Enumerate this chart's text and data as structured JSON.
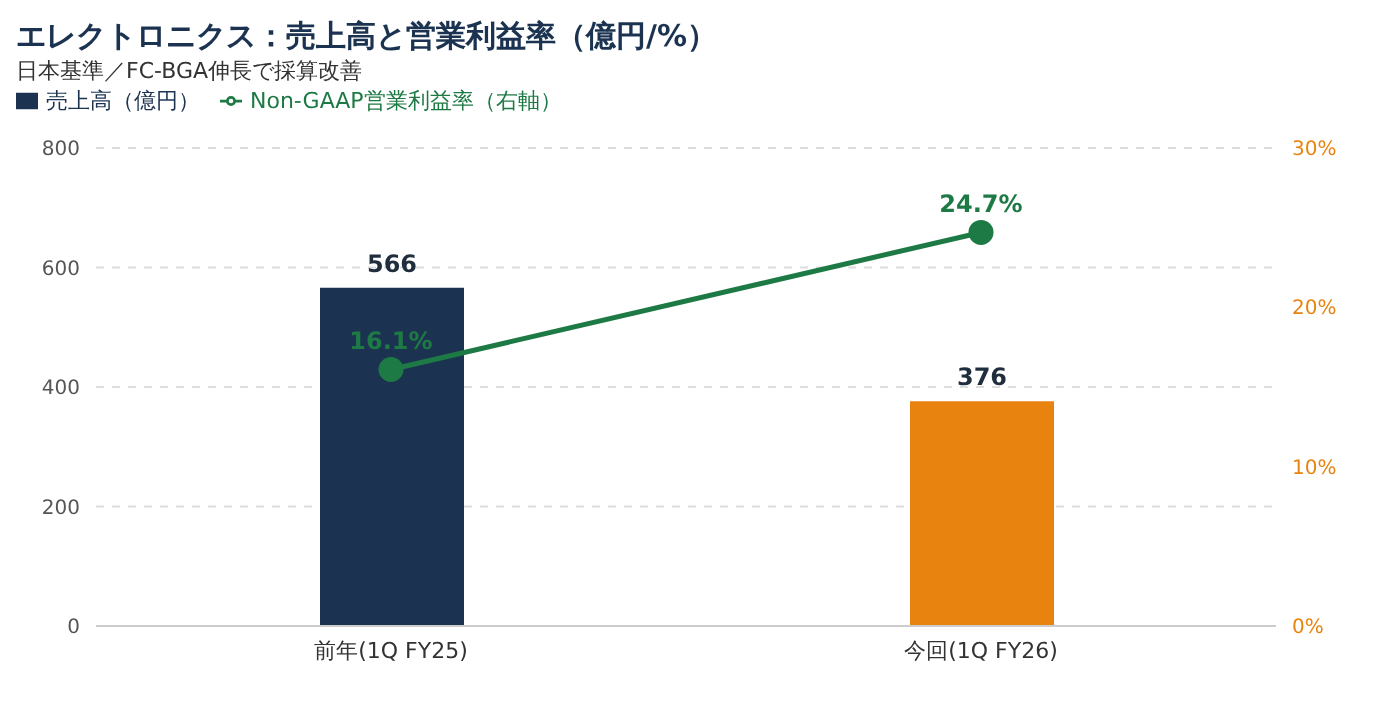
{
  "chart_data": {
    "type": "bar",
    "title": "エレクトロニクス：売上高と営業利益率（億円/%）",
    "subtitle": "日本基準／FC-BGA伸長で採算改善",
    "categories": [
      "前年(1Q FY25)",
      "今回(1Q FY26)"
    ],
    "series": [
      {
        "name": "売上高（億円）",
        "color": "#1b3350",
        "colors": [
          "#1b3350",
          "#e8830f"
        ],
        "values": [
          566,
          376
        ],
        "value_labels": [
          "566",
          "376"
        ]
      },
      {
        "type": "line",
        "name": "Non-GAAP営業利益率（右軸）",
        "color": "#1e7a45",
        "axis": "y2",
        "values": [
          16.1,
          24.7
        ],
        "value_labels": [
          "16.1%",
          "24.7%"
        ],
        "marker": "circle"
      }
    ],
    "ylim": [
      0,
      800
    ],
    "yticks": [
      0,
      200,
      400,
      600,
      800
    ],
    "y2lim": [
      0,
      30
    ],
    "y2ticks": [
      {
        "value": 0,
        "label": "0%"
      },
      {
        "value": 10,
        "label": "10%"
      },
      {
        "value": 20,
        "label": "20%"
      },
      {
        "value": 30,
        "label": "30%"
      }
    ],
    "grid": "y",
    "legend": "top left"
  }
}
